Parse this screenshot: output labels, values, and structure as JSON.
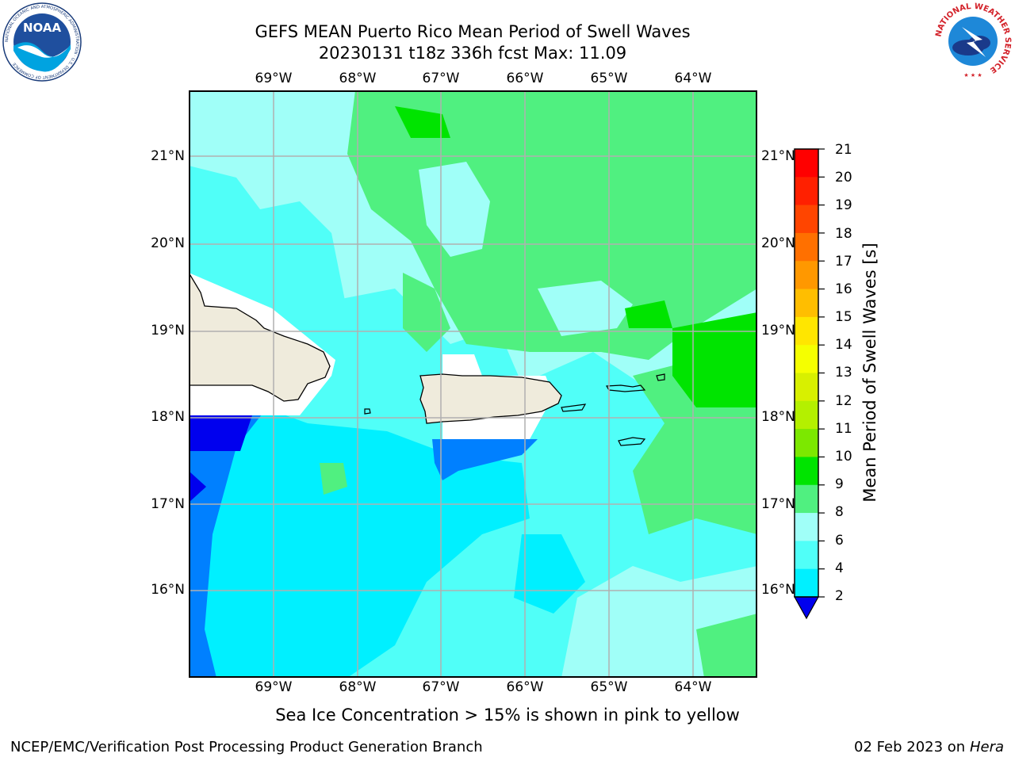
{
  "header": {
    "title_line1": "GEFS MEAN Puerto Rico Mean Period of Swell Waves",
    "title_line2": "20230131 t18z 336h fcst   Max: 11.09"
  },
  "logos": {
    "left_text": "NOAA",
    "left_ring": "NATIONAL OCEANIC AND ATMOSPHERIC ADMINISTRATION · U.S. DEPARTMENT OF COMMERCE",
    "right_ring": "NATIONAL WEATHER SERVICE"
  },
  "map": {
    "lon_labels": [
      "69°W",
      "68°W",
      "67°W",
      "66°W",
      "65°W",
      "64°W"
    ],
    "lat_labels": [
      "21°N",
      "20°N",
      "19°N",
      "18°N",
      "17°N",
      "16°N"
    ]
  },
  "colorbar": {
    "label": "Mean Period of Swell Waves [s]",
    "ticks": [
      "21",
      "20",
      "19",
      "18",
      "17",
      "16",
      "15",
      "14",
      "13",
      "12",
      "11",
      "10",
      "9",
      "8",
      "6",
      "4",
      "2"
    ],
    "colors": [
      "#ff0000",
      "#ff2000",
      "#ff4500",
      "#ff7000",
      "#ff9800",
      "#ffbe00",
      "#ffe600",
      "#f5ff00",
      "#d8f000",
      "#b4f000",
      "#7ce800",
      "#00e400",
      "#50f080",
      "#a0fff8",
      "#50fff8",
      "#00f0ff",
      "#0080ff",
      "#0000ee"
    ],
    "under_color": "#0000ee"
  },
  "caption": "Sea Ice Concentration > 15% is shown in pink to yellow",
  "footer": {
    "left": "NCEP/EMC/Verification Post Processing Product Generation Branch",
    "date": "02 Feb 2023 on",
    "host": "Hera"
  }
}
